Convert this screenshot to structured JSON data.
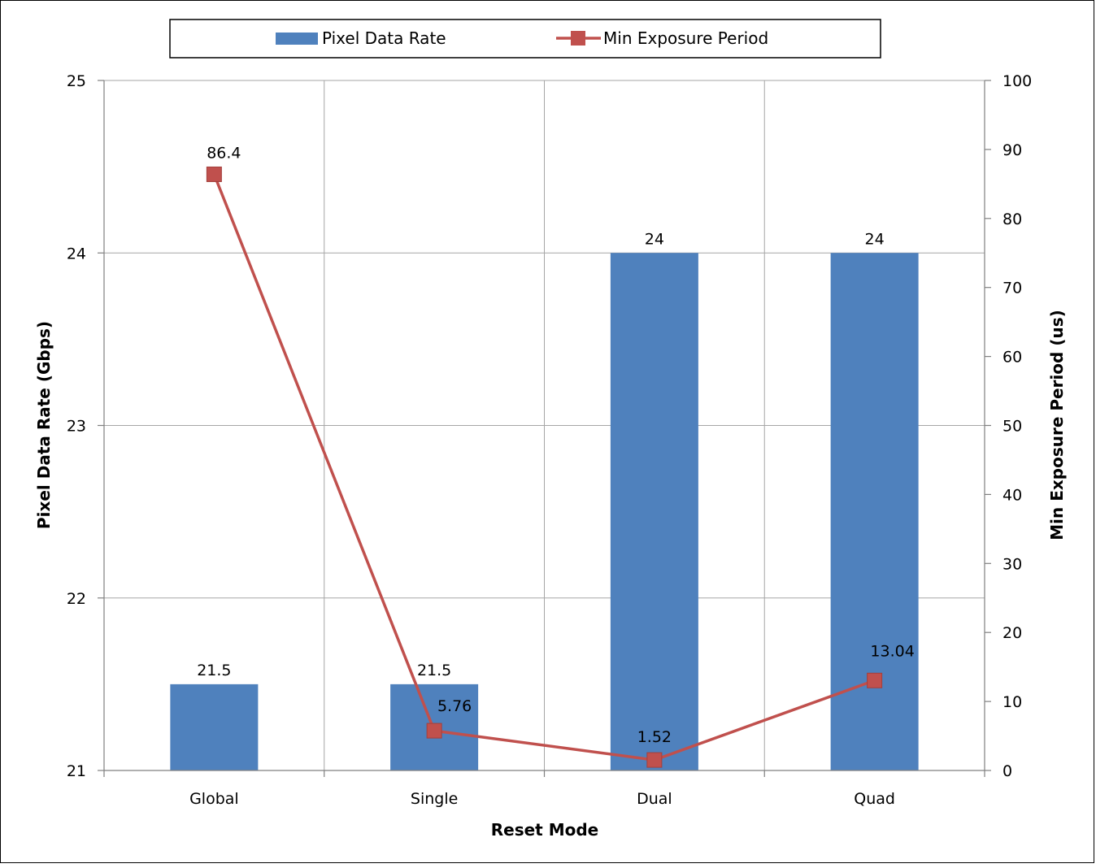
{
  "chart_data": {
    "type": "bar",
    "categories": [
      "Global",
      "Single",
      "Dual",
      "Quad"
    ],
    "series": [
      {
        "name": "Pixel Data Rate",
        "type": "bar",
        "axis": "left",
        "values": [
          21.5,
          21.5,
          24,
          24
        ],
        "labels": [
          "21.5",
          "21.5",
          "24",
          "24"
        ]
      },
      {
        "name": "Min Exposure Period",
        "type": "line",
        "axis": "right",
        "marker": "square",
        "values": [
          86.4,
          5.76,
          1.52,
          13.04
        ],
        "labels": [
          "86.4",
          "5.76",
          "1.52",
          "13.04"
        ]
      }
    ],
    "xlabel": "Reset Mode",
    "ylabel": "Pixel Data Rate (Gbps)",
    "y2label": "Min Exposure Period (us)",
    "ylim": [
      21,
      25
    ],
    "y2lim": [
      0,
      100
    ],
    "yticks": [
      "21",
      "22",
      "23",
      "24",
      "25"
    ],
    "y2ticks": [
      "0",
      "10",
      "20",
      "30",
      "40",
      "50",
      "60",
      "70",
      "80",
      "90",
      "100"
    ],
    "grid": true,
    "legend_position": "top",
    "colors": {
      "bar": "#4f81bd",
      "line": "#c0504d",
      "grid": "#a6a6a6",
      "axis": "#808080"
    }
  }
}
